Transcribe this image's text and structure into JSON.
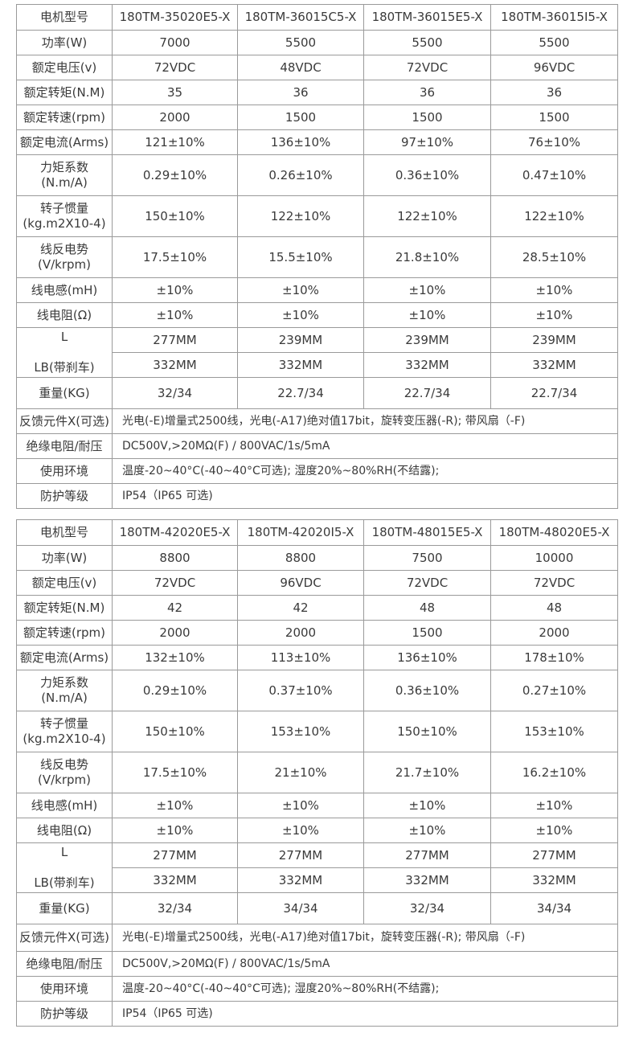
{
  "tables": [
    {
      "header": {
        "label": "电机型号",
        "models": [
          "180TM-35020E5-X",
          "180TM-36015C5-X",
          "180TM-36015E5-X",
          "180TM-36015I5-X"
        ]
      },
      "rows": [
        {
          "label": "功率(W)",
          "values": [
            "7000",
            "5500",
            "5500",
            "5500"
          ]
        },
        {
          "label": "额定电压(v)",
          "values": [
            "72VDC",
            "48VDC",
            "72VDC",
            "96VDC"
          ]
        },
        {
          "label": "额定转矩(N.M)",
          "values": [
            "35",
            "36",
            "36",
            "36"
          ]
        },
        {
          "label": "额定转速(rpm)",
          "values": [
            "2000",
            "1500",
            "1500",
            "1500"
          ]
        },
        {
          "label": "额定电流(Arms)",
          "values": [
            "121±10%",
            "136±10%",
            "97±10%",
            "76±10%"
          ]
        },
        {
          "label": "力矩系数\n(N.m/A)",
          "values": [
            "0.29±10%",
            "0.26±10%",
            "0.36±10%",
            "0.47±10%"
          ]
        },
        {
          "label": "转子惯量\n(kg.m2X10-4)",
          "values": [
            "150±10%",
            "122±10%",
            "122±10%",
            "122±10%"
          ]
        },
        {
          "label": "线反电势\n(V/krpm)",
          "values": [
            "17.5±10%",
            "15.5±10%",
            "21.8±10%",
            "28.5±10%"
          ]
        },
        {
          "label": "线电感(mH)",
          "values": [
            "±10%",
            "±10%",
            "±10%",
            "±10%"
          ]
        },
        {
          "label": "线电阻(Ω)",
          "values": [
            "±10%",
            "±10%",
            "±10%",
            "±10%"
          ]
        }
      ],
      "length": {
        "label": "L\n\nLB(带刹车)",
        "L": [
          "277MM",
          "239MM",
          "239MM",
          "239MM"
        ],
        "LB": [
          "332MM",
          "332MM",
          "332MM",
          "332MM"
        ]
      },
      "weight": {
        "label": "重量(KG)",
        "values": [
          "32/34",
          "22.7/34",
          "22.7/34",
          "22.7/34"
        ]
      },
      "common": [
        {
          "label": "反馈元件X(可选)",
          "value": "光电(-E)增量式2500线，光电(-A17)绝对值17bit，旋转变压器(-R); 带风扇（-F)"
        },
        {
          "label": "绝缘电阻/耐压",
          "value": "DC500V,>20MΩ(F) / 800VAC/1s/5mA"
        },
        {
          "label": "使用环境",
          "value": "温度-20~40°C(-40~40°C可选); 湿度20%~80%RH(不结露);"
        },
        {
          "label": "防护等级",
          "value": "IP54（IP65 可选)"
        }
      ]
    },
    {
      "header": {
        "label": "电机型号",
        "models": [
          "180TM-42020E5-X",
          "180TM-42020I5-X",
          "180TM-48015E5-X",
          "180TM-48020E5-X"
        ]
      },
      "rows": [
        {
          "label": "功率(W)",
          "values": [
            "8800",
            "8800",
            "7500",
            "10000"
          ]
        },
        {
          "label": "额定电压(v)",
          "values": [
            "72VDC",
            "96VDC",
            "72VDC",
            "72VDC"
          ]
        },
        {
          "label": "额定转矩(N.M)",
          "values": [
            "42",
            "42",
            "48",
            "48"
          ]
        },
        {
          "label": "额定转速(rpm)",
          "values": [
            "2000",
            "2000",
            "1500",
            "2000"
          ]
        },
        {
          "label": "额定电流(Arms)",
          "values": [
            "132±10%",
            "113±10%",
            "136±10%",
            "178±10%"
          ]
        },
        {
          "label": "力矩系数\n(N.m/A)",
          "values": [
            "0.29±10%",
            "0.37±10%",
            "0.36±10%",
            "0.27±10%"
          ]
        },
        {
          "label": "转子惯量\n(kg.m2X10-4)",
          "values": [
            "150±10%",
            "153±10%",
            "150±10%",
            "153±10%"
          ]
        },
        {
          "label": "线反电势\n(V/krpm)",
          "values": [
            "17.5±10%",
            "21±10%",
            "21.7±10%",
            "16.2±10%"
          ]
        },
        {
          "label": "线电感(mH)",
          "values": [
            "±10%",
            "±10%",
            "±10%",
            "±10%"
          ]
        },
        {
          "label": "线电阻(Ω)",
          "values": [
            "±10%",
            "±10%",
            "±10%",
            "±10%"
          ]
        }
      ],
      "length": {
        "label": "L\n\nLB(带刹车)",
        "L": [
          "277MM",
          "277MM",
          "277MM",
          "277MM"
        ],
        "LB": [
          "332MM",
          "332MM",
          "332MM",
          "332MM"
        ]
      },
      "weight": {
        "label": "重量(KG)",
        "values": [
          "32/34",
          "34/34",
          "32/34",
          "34/34"
        ]
      },
      "common": [
        {
          "label": "反馈元件X(可选)",
          "value": "光电(-E)增量式2500线，光电(-A17)绝对值17bit，旋转变压器(-R); 带风扇（-F)"
        },
        {
          "label": "绝缘电阻/耐压",
          "value": "DC500V,>20MΩ(F) / 800VAC/1s/5mA"
        },
        {
          "label": "使用环境",
          "value": "温度-20~40°C(-40~40°C可选); 湿度20%~80%RH(不结露);"
        },
        {
          "label": "防护等级",
          "value": "IP54（IP65 可选)"
        }
      ]
    }
  ]
}
